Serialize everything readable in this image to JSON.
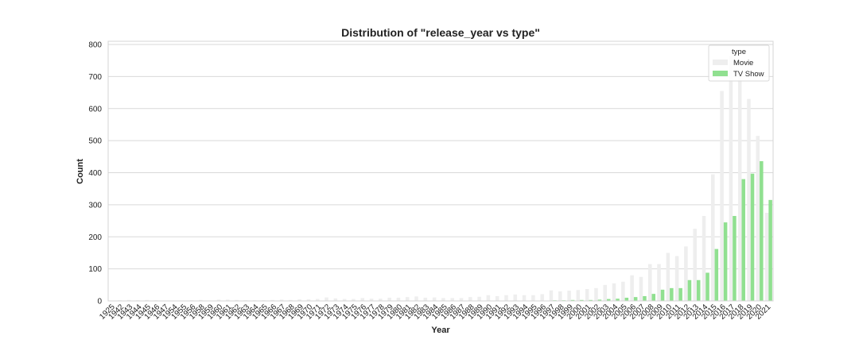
{
  "chart_data": {
    "type": "bar",
    "title": "Distribution of \"release_year vs type\"",
    "xlabel": "Year",
    "ylabel": "Count",
    "ylim": [
      0,
      810
    ],
    "yticks": [
      0,
      100,
      200,
      300,
      400,
      500,
      600,
      700,
      800
    ],
    "grid": true,
    "legend": {
      "title": "type",
      "placement": "top-right"
    },
    "categories": [
      "1925",
      "1942",
      "1943",
      "1944",
      "1945",
      "1946",
      "1947",
      "1954",
      "1955",
      "1956",
      "1958",
      "1959",
      "1960",
      "1961",
      "1962",
      "1963",
      "1964",
      "1965",
      "1966",
      "1967",
      "1968",
      "1969",
      "1970",
      "1971",
      "1972",
      "1973",
      "1974",
      "1975",
      "1976",
      "1977",
      "1978",
      "1979",
      "1980",
      "1981",
      "1982",
      "1983",
      "1984",
      "1985",
      "1986",
      "1987",
      "1988",
      "1989",
      "1990",
      "1991",
      "1992",
      "1993",
      "1994",
      "1995",
      "1996",
      "1997",
      "1998",
      "1999",
      "2000",
      "2001",
      "2002",
      "2003",
      "2004",
      "2005",
      "2006",
      "2007",
      "2008",
      "2009",
      "2010",
      "2011",
      "2012",
      "2013",
      "2014",
      "2015",
      "2016",
      "2017",
      "2018",
      "2019",
      "2020",
      "2021"
    ],
    "series": [
      {
        "name": "Movie",
        "color": "#eeeeee",
        "values": [
          0,
          2,
          3,
          2,
          3,
          2,
          1,
          1,
          1,
          2,
          3,
          1,
          4,
          4,
          3,
          2,
          2,
          2,
          3,
          4,
          3,
          5,
          5,
          6,
          11,
          8,
          6,
          6,
          9,
          7,
          7,
          10,
          10,
          12,
          14,
          10,
          11,
          9,
          9,
          9,
          12,
          13,
          18,
          15,
          18,
          20,
          18,
          18,
          21,
          33,
          30,
          32,
          34,
          37,
          40,
          50,
          55,
          60,
          80,
          75,
          115,
          115,
          150,
          140,
          170,
          225,
          265,
          395,
          655,
          765,
          700,
          630,
          515,
          275
        ]
      },
      {
        "name": "TV Show",
        "color": "#90e090",
        "values": [
          1,
          0,
          0,
          0,
          0,
          0,
          0,
          0,
          0,
          0,
          0,
          0,
          0,
          0,
          0,
          0,
          0,
          0,
          0,
          0,
          0,
          0,
          0,
          0,
          0,
          0,
          0,
          0,
          0,
          0,
          0,
          0,
          0,
          0,
          0,
          0,
          0,
          0,
          0,
          0,
          0,
          0,
          0,
          0,
          0,
          1,
          1,
          1,
          1,
          2,
          2,
          3,
          3,
          3,
          4,
          6,
          7,
          10,
          12,
          15,
          22,
          35,
          40,
          40,
          65,
          65,
          88,
          162,
          245,
          265,
          380,
          397,
          436,
          315
        ]
      }
    ]
  }
}
